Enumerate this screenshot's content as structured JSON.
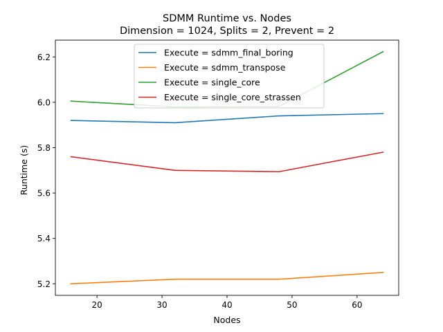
{
  "chart_data": {
    "type": "line",
    "title": "SDMM Runtime vs. Nodes",
    "subtitle": "Dimension = 1024, Splits = 2, Prevent = 2",
    "xlabel": "Nodes",
    "ylabel": "Runtime (s)",
    "x": [
      16,
      32,
      48,
      64
    ],
    "xlim": [
      13.6,
      66.4
    ],
    "ylim": [
      5.149,
      6.274
    ],
    "xticks": [
      20,
      30,
      40,
      50,
      60
    ],
    "yticks": [
      5.2,
      5.4,
      5.6,
      5.8,
      6.0,
      6.2
    ],
    "ytick_labels": [
      "5.2",
      "5.4",
      "5.6",
      "5.8",
      "6.0",
      "6.2"
    ],
    "grid": false,
    "legend_position": "top-center",
    "series": [
      {
        "name": "Execute = sdmm_final_boring",
        "color": "#1f77b4",
        "values": [
          5.92,
          5.91,
          5.94,
          5.95
        ]
      },
      {
        "name": "Execute = sdmm_transpose",
        "color": "#ff7f0e",
        "values": [
          5.2,
          5.22,
          5.22,
          5.25
        ]
      },
      {
        "name": "Execute = single_core",
        "color": "#2ca02c",
        "values": [
          6.005,
          5.98,
          5.982,
          6.223
        ]
      },
      {
        "name": "Execute = single_core_strassen",
        "color": "#d62728",
        "values": [
          5.76,
          5.7,
          5.694,
          5.78
        ]
      }
    ]
  }
}
